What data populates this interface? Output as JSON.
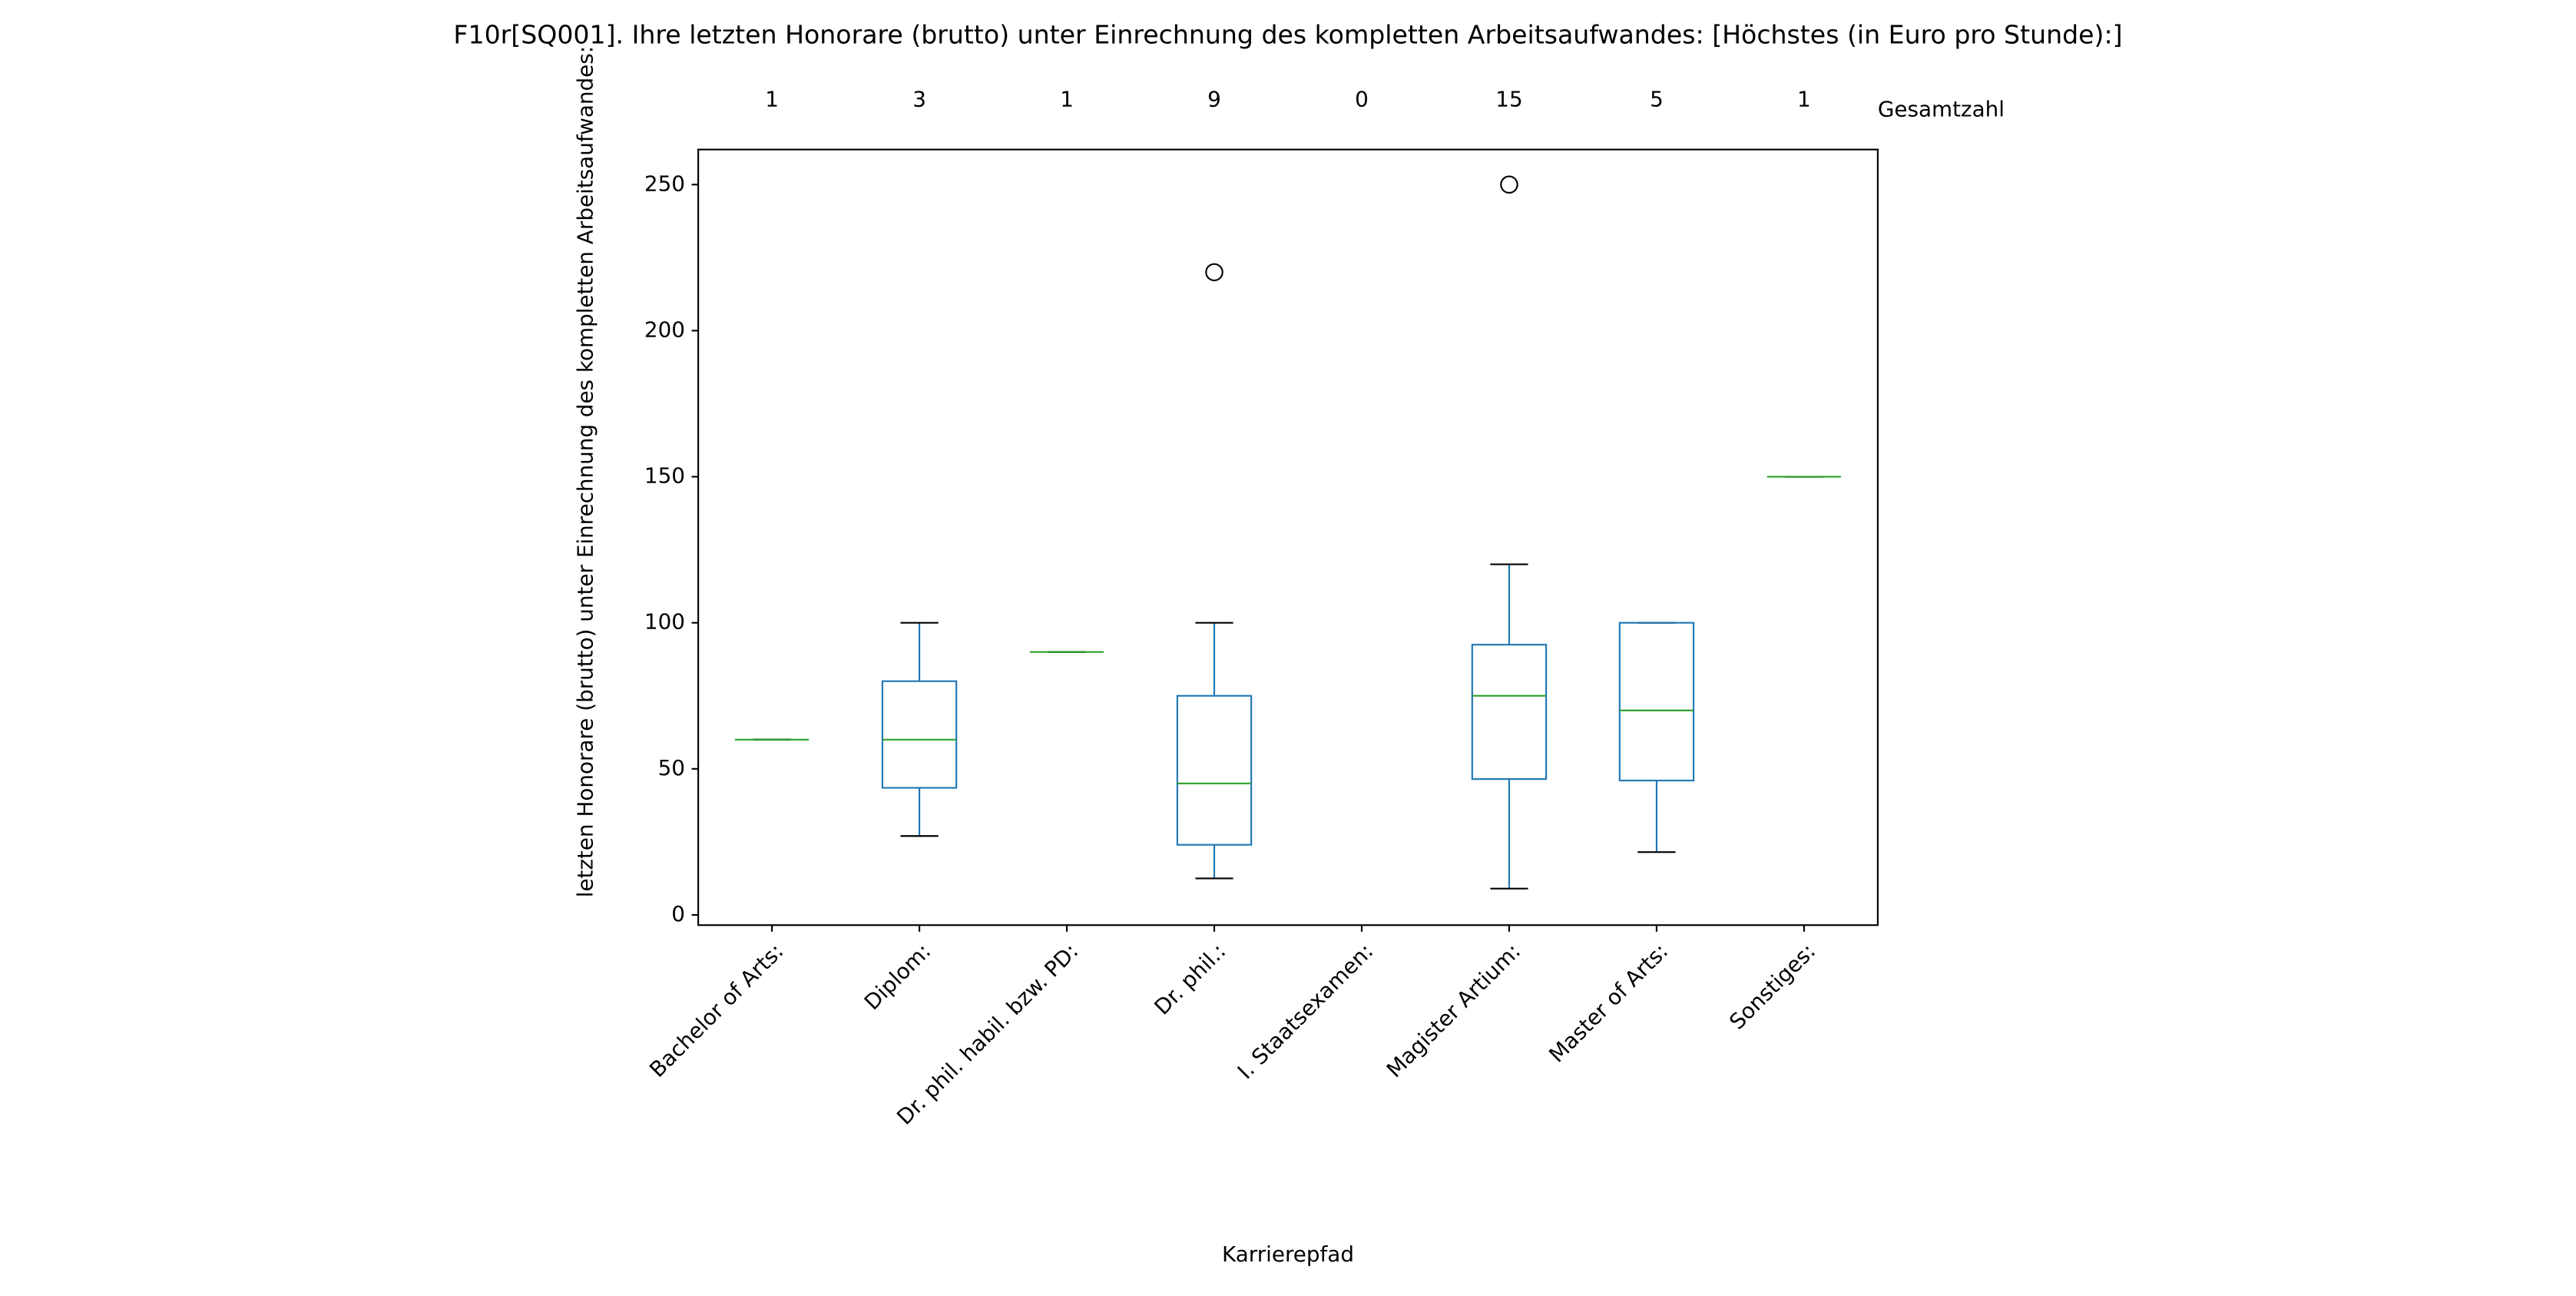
{
  "chart_data": {
    "type": "box",
    "title": "F10r[SQ001]. Ihre letzten Honorare (brutto) unter Einrechnung des kompletten Arbeitsaufwandes:  [Höchstes (in Euro pro Stunde):]",
    "x_label": "Karrierepfad",
    "y_label": "letzten Honorare (brutto) unter Einrechnung des kompletten Arbeitsaufwandes:",
    "categories": [
      "Bachelor of Arts:",
      "Diplom:",
      "Dr. phil. habil. bzw. PD:",
      "Dr. phil.:",
      "I. Staatsexamen:",
      "Magister Artium:",
      "Master of Arts:",
      "Sonstiges:"
    ],
    "counts_label": "Gesamtzahl",
    "counts": [
      1,
      3,
      1,
      9,
      0,
      15,
      5,
      1
    ],
    "boxes": [
      {
        "whislo": 60,
        "q1": 60,
        "med": 60,
        "q3": 60,
        "whishi": 60,
        "fliers": []
      },
      {
        "whislo": 27,
        "q1": 43.5,
        "med": 60,
        "q3": 80,
        "whishi": 100,
        "fliers": []
      },
      {
        "whislo": 90,
        "q1": 90,
        "med": 90,
        "q3": 90,
        "whishi": 90,
        "fliers": []
      },
      {
        "whislo": 12.5,
        "q1": 24,
        "med": 45,
        "q3": 75,
        "whishi": 100,
        "fliers": [
          220
        ]
      },
      {
        "whislo": null,
        "q1": null,
        "med": null,
        "q3": null,
        "whishi": null,
        "fliers": []
      },
      {
        "whislo": 9,
        "q1": 46.5,
        "med": 75,
        "q3": 92.5,
        "whishi": 120,
        "fliers": [
          250
        ]
      },
      {
        "whislo": 21.5,
        "q1": 46,
        "med": 70,
        "q3": 100,
        "whishi": 100,
        "fliers": []
      },
      {
        "whislo": 150,
        "q1": 150,
        "med": 150,
        "q3": 150,
        "whishi": 150,
        "fliers": []
      }
    ],
    "box_color": "#1f77b4",
    "median_color": "#2ca02c",
    "cap_color": "#000000",
    "ylim": [
      -3.5,
      262
    ],
    "yticks": [
      0,
      50,
      100,
      150,
      200,
      250
    ],
    "grid": false
  }
}
